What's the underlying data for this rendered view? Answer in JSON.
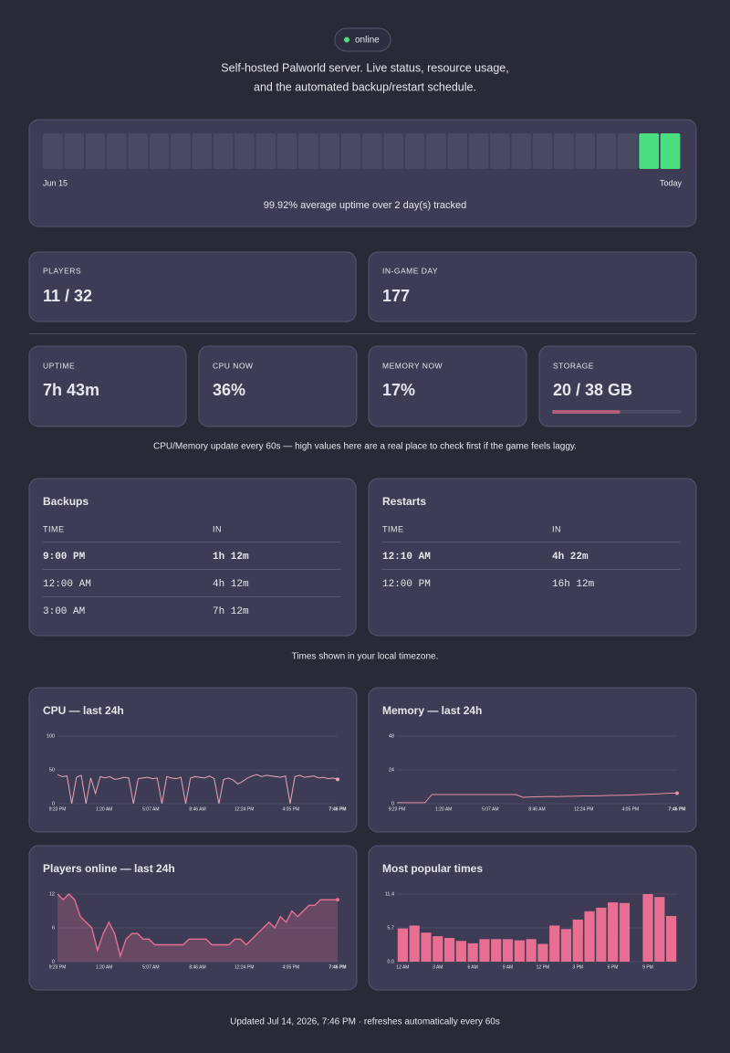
{
  "status": "online",
  "intro": [
    "Self-hosted Palworld server. Live status, resource usage,",
    "and the automated backup/restart schedule."
  ],
  "uptime": {
    "start_label": "Jun 15",
    "end_label": "Today",
    "summary": "99.92% average uptime over 2 day(s) tracked"
  },
  "stats": [
    {
      "label": "PLAYERS",
      "value": "11 / 32"
    },
    {
      "label": "IN-GAME DAY",
      "value": "177"
    }
  ],
  "metrics": [
    {
      "label": "UPTIME",
      "value": "7h 43m"
    },
    {
      "label": "CPU NOW",
      "value": "36%"
    },
    {
      "label": "MEMORY NOW",
      "value": "17%"
    },
    {
      "label": "STORAGE",
      "value": "20 / 38 GB",
      "used": 20,
      "total": 38
    }
  ],
  "metrics_note": "CPU/Memory update every 60s — high values here are a real place to check first if the game feels laggy.",
  "schedules": [
    {
      "title": "Backups",
      "columns": [
        "TIME",
        "IN"
      ],
      "rows": [
        [
          "9:00 PM",
          "1h 12m"
        ],
        [
          "12:00 AM",
          "4h 12m"
        ],
        [
          "3:00 AM",
          "7h 12m"
        ]
      ]
    },
    {
      "title": "Restarts",
      "columns": [
        "TIME",
        "IN"
      ],
      "rows": [
        [
          "12:10 AM",
          "4h 22m"
        ],
        [
          "12:00 PM",
          "16h 12m"
        ]
      ]
    }
  ],
  "timezone_note": "Times shown in your local timezone.",
  "chart_data": [
    {
      "type": "line",
      "title": "CPU — last 24h",
      "color": "#e8a6bb",
      "area": false,
      "x_labels": [
        "9:23 PM",
        "1:20 AM",
        "5:07 AM",
        "8:46 AM",
        "12:24 PM",
        "4:05 PM",
        "7:46 PM"
      ],
      "values": [
        43,
        40,
        41,
        0,
        39,
        42,
        0,
        38,
        15,
        40,
        38,
        40,
        36,
        37,
        39,
        38,
        0,
        37,
        38,
        39,
        37,
        38,
        0,
        40,
        38,
        37,
        39,
        0,
        38,
        40,
        39,
        38,
        41,
        37,
        0,
        36,
        38,
        35,
        29,
        33,
        38,
        41,
        43,
        40,
        42,
        41,
        40,
        39,
        41,
        0,
        40,
        42,
        39,
        40,
        41,
        38,
        39,
        37,
        38,
        36
      ],
      "ylim": [
        0,
        100
      ],
      "yticks": [
        0,
        50,
        100
      ]
    },
    {
      "type": "line",
      "title": "Memory — last 24h",
      "color": "#e88fa8",
      "area": false,
      "x_labels": [
        "9:23 PM",
        "1:20 AM",
        "5:07 AM",
        "8:46 AM",
        "12:24 PM",
        "4:05 PM",
        "7:46 PM"
      ],
      "values": [
        0.7,
        0.7,
        0.7,
        0.7,
        0.7,
        6.5,
        6.5,
        6.5,
        6.5,
        6.5,
        6.5,
        6.5,
        6.5,
        6.5,
        6.5,
        6.5,
        6.5,
        6.5,
        4.5,
        4.8,
        4.9,
        5.0,
        5.1,
        5.0,
        5.2,
        5.3,
        5.4,
        5.5,
        5.5,
        5.6,
        5.8,
        5.9,
        6.0,
        6.1,
        6.3,
        6.5,
        6.7,
        6.9,
        7.2,
        7.5,
        7.5
      ],
      "ylim": [
        0,
        48
      ],
      "yticks": [
        0,
        24,
        48
      ]
    },
    {
      "type": "line",
      "title": "Players online — last 24h",
      "color": "#e86f92",
      "area": true,
      "x_labels": [
        "9:23 PM",
        "1:20 AM",
        "5:07 AM",
        "8:46 AM",
        "12:24 PM",
        "4:05 PM",
        "7:46 PM"
      ],
      "values": [
        12,
        11,
        12,
        11,
        8,
        7,
        6,
        2,
        5,
        7,
        5,
        1,
        4,
        5,
        5,
        4,
        4,
        3,
        3,
        3,
        3,
        3,
        3,
        4,
        4,
        4,
        4,
        3,
        3,
        3,
        3,
        4,
        4,
        3,
        4,
        5,
        6,
        7,
        6,
        8,
        7,
        9,
        8,
        9,
        10,
        10,
        11,
        11,
        11,
        11
      ],
      "ylim": [
        0,
        12
      ],
      "yticks": [
        0,
        6,
        12
      ]
    },
    {
      "type": "bar",
      "title": "Most popular times",
      "color": "#e86f92",
      "categories": [
        "12 AM",
        null,
        null,
        "3 AM",
        null,
        null,
        "6 AM",
        null,
        null,
        "9 AM",
        null,
        null,
        "12 PM",
        null,
        null,
        "3 PM",
        null,
        null,
        "6 PM",
        null,
        null,
        "9 PM",
        null,
        null
      ],
      "values": [
        5.6,
        6.1,
        4.9,
        4.3,
        4.0,
        3.5,
        3.1,
        3.8,
        3.8,
        3.8,
        3.6,
        3.8,
        3.0,
        6.1,
        5.5,
        7.1,
        8.5,
        9.1,
        10.0,
        9.9,
        0,
        11.4,
        10.9,
        7.7
      ],
      "ylim": [
        0,
        11.4
      ],
      "yticks": [
        {
          "value": 0,
          "label": "0.0"
        },
        5.7,
        11.4
      ]
    }
  ],
  "footer": "Updated Jul 14, 2026, 7:46 PM · refreshes automatically every 60s"
}
